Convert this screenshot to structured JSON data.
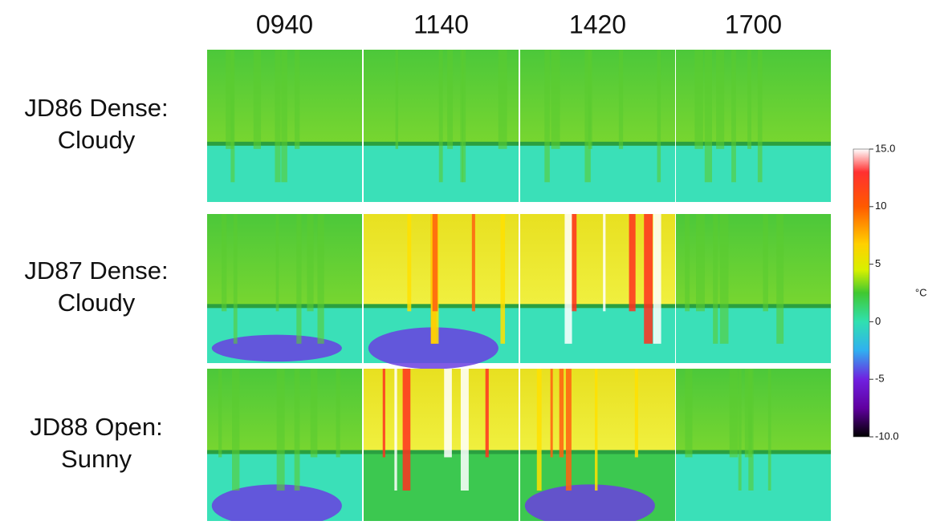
{
  "columns": [
    "0940",
    "1140",
    "1420",
    "1700"
  ],
  "rows": [
    [
      "JD86 Dense:",
      "Cloudy"
    ],
    [
      "JD87 Dense:",
      "Cloudy"
    ],
    [
      "JD88 Open:",
      "Sunny"
    ]
  ],
  "colorbar": {
    "range": [
      -10,
      15
    ],
    "ticks": [
      {
        "value": 15,
        "label": "15.0"
      },
      10,
      5,
      0,
      -5,
      {
        "value": -10,
        "label": "-10.0"
      }
    ],
    "unit": "°C"
  }
}
